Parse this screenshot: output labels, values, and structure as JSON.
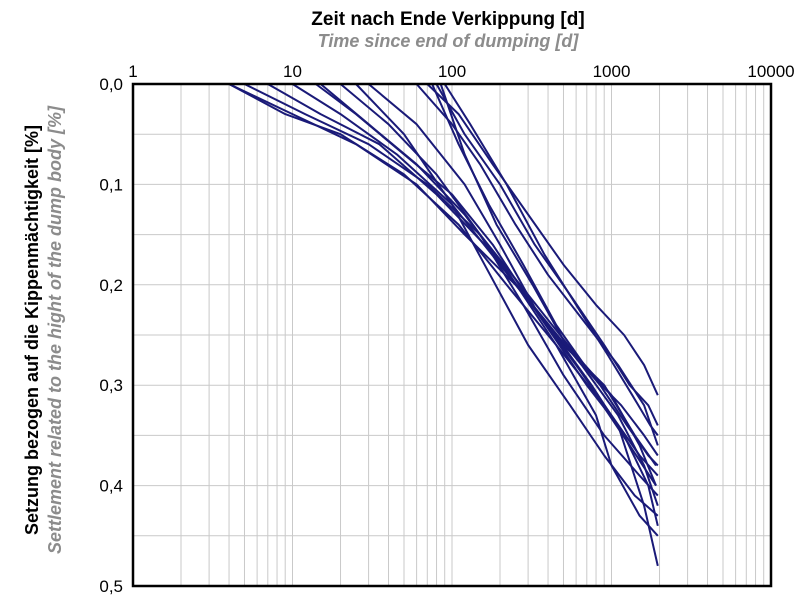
{
  "chart_data": {
    "type": "line",
    "title": "Zeit nach Ende Verkippung [d]",
    "subtitle": "Time since end of dumping [d]",
    "xlabel": "Zeit nach Ende Verkippung [d]",
    "xlabel_en": "Time since end of dumping [d]",
    "ylabel": "Setzung bezogen auf die Kippenmächtigkeit [%]",
    "ylabel_en": "Settlement related to the hight of the dump body [%]",
    "x_scale": "log",
    "x_axis_position": "top",
    "y_inverted": true,
    "xlim": [
      1,
      10000
    ],
    "ylim": [
      0,
      0.5
    ],
    "x_ticks": [
      1,
      10,
      100,
      1000,
      10000
    ],
    "x_tick_labels": [
      "1",
      "10",
      "100",
      "1000",
      "10000"
    ],
    "y_ticks": [
      0,
      0.1,
      0.2,
      0.3,
      0.4,
      0.5
    ],
    "y_tick_labels": [
      "0,0",
      "0,1",
      "0,2",
      "0,3",
      "0,4",
      "0,5"
    ],
    "grid": true,
    "line_color": "#1a1a78",
    "series": [
      {
        "points": [
          [
            4,
            0
          ],
          [
            10,
            0.03
          ],
          [
            25,
            0.06
          ],
          [
            60,
            0.1
          ],
          [
            120,
            0.15
          ],
          [
            250,
            0.2
          ],
          [
            500,
            0.26
          ],
          [
            900,
            0.3
          ],
          [
            1400,
            0.35
          ],
          [
            1900,
            0.38
          ]
        ]
      },
      {
        "points": [
          [
            5,
            0
          ],
          [
            12,
            0.03
          ],
          [
            30,
            0.06
          ],
          [
            70,
            0.1
          ],
          [
            150,
            0.15
          ],
          [
            300,
            0.21
          ],
          [
            600,
            0.27
          ],
          [
            1000,
            0.31
          ],
          [
            1500,
            0.36
          ],
          [
            1900,
            0.4
          ]
        ]
      },
      {
        "points": [
          [
            4,
            0
          ],
          [
            9,
            0.03
          ],
          [
            20,
            0.05
          ],
          [
            50,
            0.09
          ],
          [
            110,
            0.14
          ],
          [
            220,
            0.2
          ],
          [
            450,
            0.26
          ],
          [
            800,
            0.31
          ],
          [
            1300,
            0.36
          ],
          [
            1900,
            0.4
          ]
        ]
      },
      {
        "points": [
          [
            7,
            0
          ],
          [
            15,
            0.03
          ],
          [
            35,
            0.06
          ],
          [
            80,
            0.11
          ],
          [
            160,
            0.16
          ],
          [
            320,
            0.22
          ],
          [
            650,
            0.28
          ],
          [
            1100,
            0.33
          ],
          [
            1600,
            0.38
          ],
          [
            1950,
            0.42
          ]
        ]
      },
      {
        "points": [
          [
            10,
            0
          ],
          [
            20,
            0.03
          ],
          [
            45,
            0.07
          ],
          [
            100,
            0.12
          ],
          [
            200,
            0.18
          ],
          [
            400,
            0.24
          ],
          [
            750,
            0.3
          ],
          [
            1200,
            0.35
          ],
          [
            1700,
            0.4
          ],
          [
            1950,
            0.44
          ]
        ]
      },
      {
        "points": [
          [
            14,
            0
          ],
          [
            25,
            0.03
          ],
          [
            50,
            0.07
          ],
          [
            100,
            0.11
          ],
          [
            180,
            0.16
          ],
          [
            350,
            0.23
          ],
          [
            700,
            0.3
          ],
          [
            1100,
            0.34
          ],
          [
            1600,
            0.42
          ],
          [
            1950,
            0.48
          ]
        ]
      },
      {
        "points": [
          [
            15,
            0
          ],
          [
            30,
            0.04
          ],
          [
            60,
            0.08
          ],
          [
            120,
            0.13
          ],
          [
            230,
            0.19
          ],
          [
            450,
            0.26
          ],
          [
            800,
            0.33
          ],
          [
            1000,
            0.38
          ],
          [
            1500,
            0.43
          ],
          [
            1950,
            0.45
          ]
        ]
      },
      {
        "points": [
          [
            20,
            0
          ],
          [
            40,
            0.04
          ],
          [
            80,
            0.09
          ],
          [
            150,
            0.15
          ],
          [
            280,
            0.22
          ],
          [
            500,
            0.29
          ],
          [
            900,
            0.35
          ],
          [
            1500,
            0.39
          ],
          [
            1950,
            0.41
          ]
        ]
      },
      {
        "points": [
          [
            30,
            0
          ],
          [
            60,
            0.04
          ],
          [
            120,
            0.1
          ],
          [
            200,
            0.16
          ],
          [
            350,
            0.23
          ],
          [
            600,
            0.28
          ],
          [
            1000,
            0.33
          ],
          [
            1500,
            0.37
          ],
          [
            1950,
            0.39
          ]
        ]
      },
      {
        "points": [
          [
            25,
            0
          ],
          [
            50,
            0.05
          ],
          [
            100,
            0.12
          ],
          [
            160,
            0.18
          ],
          [
            300,
            0.26
          ],
          [
            550,
            0.32
          ],
          [
            900,
            0.37
          ],
          [
            1400,
            0.41
          ],
          [
            1950,
            0.43
          ]
        ]
      },
      {
        "points": [
          [
            60,
            0
          ],
          [
            100,
            0.04
          ],
          [
            150,
            0.08
          ],
          [
            250,
            0.14
          ],
          [
            400,
            0.19
          ],
          [
            700,
            0.24
          ],
          [
            1100,
            0.28
          ],
          [
            1600,
            0.32
          ],
          [
            1950,
            0.36
          ]
        ]
      },
      {
        "points": [
          [
            70,
            0
          ],
          [
            110,
            0.03
          ],
          [
            180,
            0.08
          ],
          [
            300,
            0.13
          ],
          [
            500,
            0.18
          ],
          [
            800,
            0.22
          ],
          [
            1200,
            0.25
          ],
          [
            1600,
            0.28
          ],
          [
            1950,
            0.31
          ]
        ]
      },
      {
        "points": [
          [
            80,
            0
          ],
          [
            120,
            0.05
          ],
          [
            200,
            0.1
          ],
          [
            330,
            0.16
          ],
          [
            550,
            0.21
          ],
          [
            900,
            0.26
          ],
          [
            1300,
            0.3
          ],
          [
            1700,
            0.32
          ],
          [
            1950,
            0.34
          ]
        ]
      },
      {
        "points": [
          [
            75,
            0
          ],
          [
            110,
            0.06
          ],
          [
            170,
            0.12
          ],
          [
            280,
            0.18
          ],
          [
            450,
            0.24
          ],
          [
            750,
            0.29
          ],
          [
            1150,
            0.32
          ],
          [
            1600,
            0.35
          ],
          [
            1950,
            0.37
          ]
        ]
      },
      {
        "points": [
          [
            90,
            0
          ],
          [
            130,
            0.04
          ],
          [
            220,
            0.1
          ],
          [
            380,
            0.17
          ],
          [
            600,
            0.22
          ],
          [
            950,
            0.27
          ],
          [
            1350,
            0.31
          ],
          [
            1750,
            0.34
          ],
          [
            1950,
            0.35
          ]
        ]
      },
      {
        "points": [
          [
            85,
            0
          ],
          [
            120,
            0.07
          ],
          [
            190,
            0.14
          ],
          [
            320,
            0.2
          ],
          [
            520,
            0.26
          ],
          [
            850,
            0.3
          ],
          [
            1250,
            0.34
          ],
          [
            1700,
            0.37
          ],
          [
            1950,
            0.38
          ]
        ]
      }
    ]
  }
}
